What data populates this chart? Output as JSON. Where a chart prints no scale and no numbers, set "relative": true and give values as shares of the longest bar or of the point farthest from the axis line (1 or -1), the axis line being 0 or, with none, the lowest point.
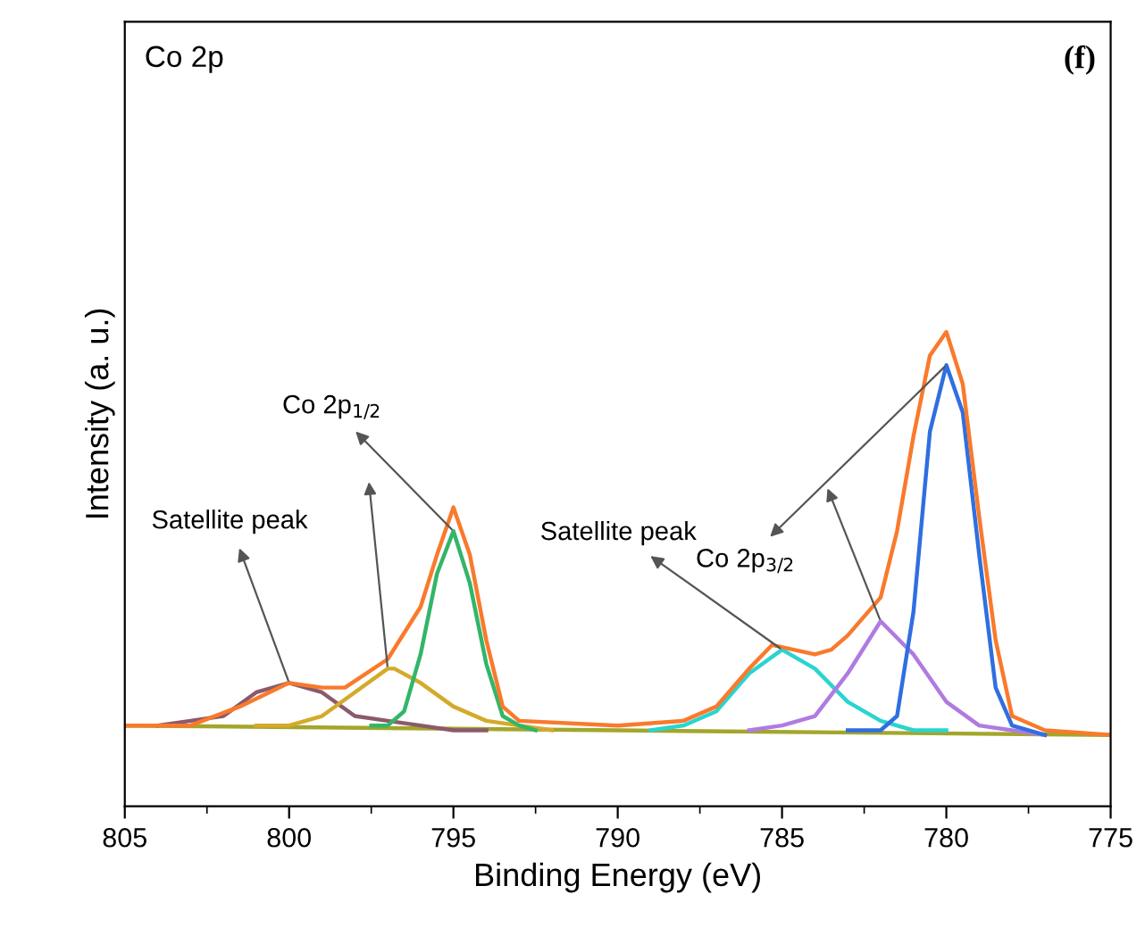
{
  "chart_data": {
    "type": "line",
    "relative": true,
    "xlabel": "Binding Energy (eV)",
    "ylabel": "Intensity (a. u.)",
    "xlim": [
      805,
      775
    ],
    "xticks": [
      805,
      800,
      795,
      790,
      785,
      780,
      775
    ],
    "grid": false,
    "legend": false,
    "marker": "none",
    "line_style": "solid",
    "annotations": [
      "Co 2p",
      "(f)",
      {
        "text": "Satellite peak",
        "x": 800,
        "y": 0.26
      },
      {
        "text": "Co 2p$_{1/2}$",
        "x": 795,
        "y": 0.58
      },
      {
        "text": "Satellite peak",
        "x": 785,
        "y": 0.33
      },
      {
        "text": "Co 2p$_{3/2}$",
        "x": 780,
        "y": 0.93
      }
    ],
    "series": [
      {
        "color": "#a3a62a",
        "x": [
          805,
          790,
          775
        ],
        "values": [
          0.17,
          0.16,
          0.15
        ]
      },
      {
        "color": "#8b5a6a",
        "x": [
          804,
          803,
          802,
          801,
          800,
          799,
          798,
          797,
          796,
          795,
          794
        ],
        "values": [
          0.17,
          0.18,
          0.19,
          0.24,
          0.26,
          0.24,
          0.19,
          0.18,
          0.17,
          0.16,
          0.16
        ]
      },
      {
        "color": "#d4aa2a",
        "x": [
          801,
          800,
          799,
          798,
          797,
          796.8,
          796,
          795,
          794,
          793,
          792
        ],
        "values": [
          0.17,
          0.17,
          0.19,
          0.24,
          0.29,
          0.29,
          0.26,
          0.21,
          0.18,
          0.17,
          0.16
        ]
      },
      {
        "color": "#33b56a",
        "x": [
          797.5,
          797,
          796.5,
          796,
          795.5,
          795,
          794.5,
          794,
          793.5,
          793,
          792.5
        ],
        "values": [
          0.17,
          0.17,
          0.2,
          0.32,
          0.49,
          0.58,
          0.47,
          0.3,
          0.19,
          0.17,
          0.16
        ]
      },
      {
        "color": "#2ad4d0",
        "x": [
          789,
          788,
          787,
          786,
          785,
          784,
          783,
          782,
          781,
          780
        ],
        "values": [
          0.16,
          0.17,
          0.2,
          0.28,
          0.33,
          0.29,
          0.22,
          0.18,
          0.16,
          0.16
        ]
      },
      {
        "color": "#b07be0",
        "x": [
          786,
          785,
          784,
          783,
          782,
          781,
          780,
          779,
          778,
          777
        ],
        "values": [
          0.16,
          0.17,
          0.19,
          0.28,
          0.39,
          0.32,
          0.22,
          0.17,
          0.16,
          0.15
        ]
      },
      {
        "color": "#2f6fe0",
        "x": [
          783,
          782,
          781.5,
          781,
          780.5,
          780,
          779.5,
          779,
          778.5,
          778,
          777
        ],
        "values": [
          0.16,
          0.16,
          0.19,
          0.41,
          0.79,
          0.93,
          0.83,
          0.53,
          0.25,
          0.17,
          0.15
        ]
      },
      {
        "color": "#f97a2c",
        "x": [
          805,
          803,
          801.5,
          800,
          799,
          798.3,
          797,
          796,
          795.5,
          795,
          794.5,
          794,
          793.5,
          793,
          790,
          788,
          787,
          786,
          785.3,
          784,
          783.5,
          783,
          782,
          781.5,
          781,
          780.5,
          780,
          779.5,
          779,
          778.5,
          778,
          777,
          775
        ],
        "values": [
          0.17,
          0.17,
          0.21,
          0.26,
          0.25,
          0.25,
          0.31,
          0.42,
          0.53,
          0.63,
          0.53,
          0.35,
          0.21,
          0.18,
          0.17,
          0.18,
          0.21,
          0.29,
          0.34,
          0.32,
          0.33,
          0.36,
          0.44,
          0.58,
          0.78,
          0.95,
          1.0,
          0.89,
          0.61,
          0.35,
          0.19,
          0.16,
          0.15
        ]
      }
    ]
  }
}
